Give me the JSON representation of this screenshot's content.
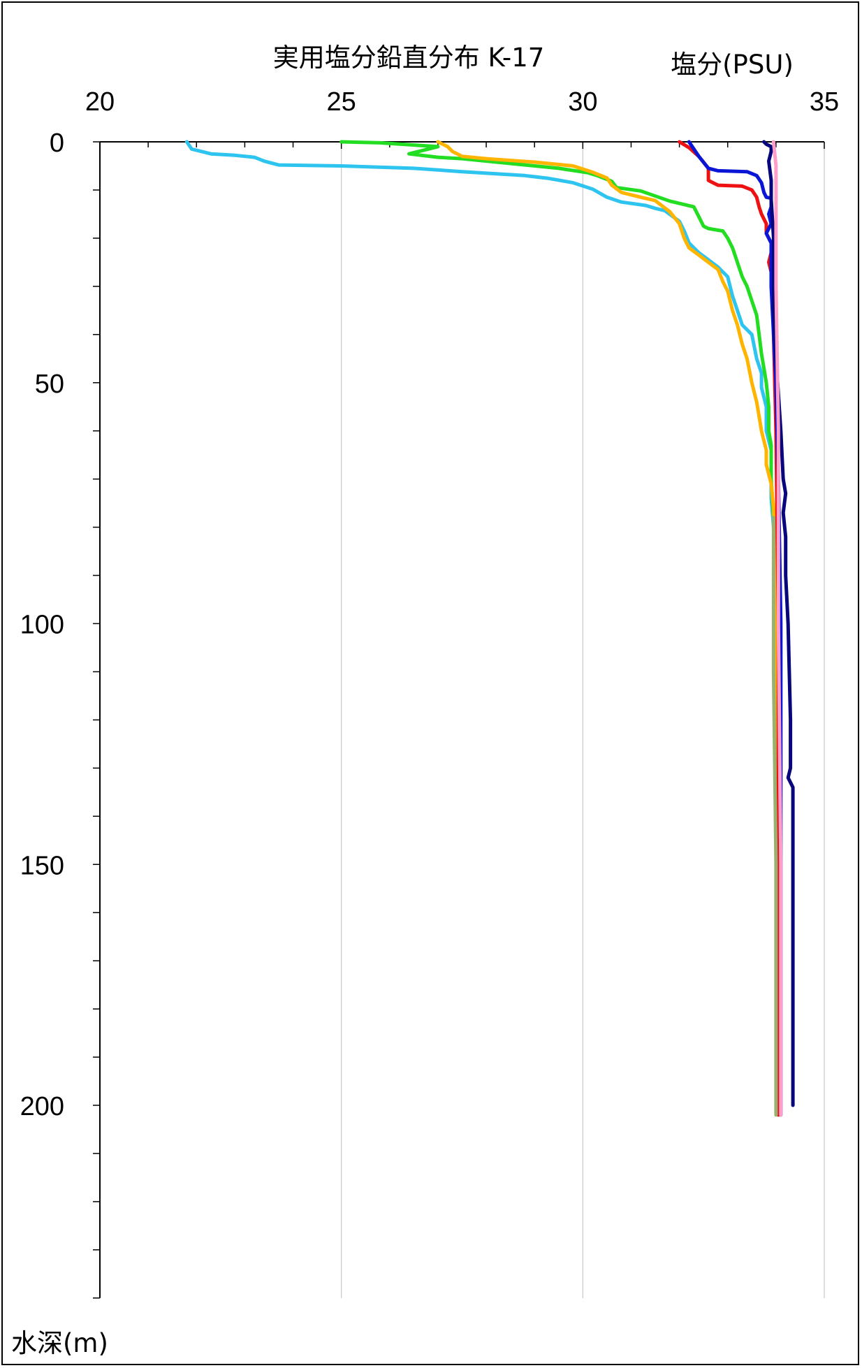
{
  "chart_data": {
    "type": "line",
    "title": "実用塩分鉛直分布 K-17",
    "xlabel": "塩分(PSU)",
    "ylabel": "水深(m)",
    "xlim": [
      20,
      35
    ],
    "ylim": [
      0,
      240
    ],
    "y_inverted": true,
    "x_axis_position": "top",
    "xticks": [
      "20",
      "25",
      "30",
      "35"
    ],
    "yticks": [
      "0",
      "50",
      "100",
      "150",
      "200"
    ],
    "grid": "vertical",
    "legend": "none",
    "series": [
      {
        "color": "#2ec4f0",
        "points": [
          [
            21.8,
            0
          ],
          [
            21.9,
            1.5
          ],
          [
            22.3,
            2.5
          ],
          [
            22.8,
            2.8
          ],
          [
            23.2,
            3.2
          ],
          [
            23.4,
            4
          ],
          [
            23.7,
            4.8
          ],
          [
            25.0,
            5
          ],
          [
            26.5,
            5.5
          ],
          [
            27.5,
            6.2
          ],
          [
            28.8,
            7
          ],
          [
            29.3,
            7.6
          ],
          [
            29.8,
            8.5
          ],
          [
            30.2,
            9.8
          ],
          [
            30.5,
            11.5
          ],
          [
            30.8,
            12.5
          ],
          [
            31.3,
            13.2
          ],
          [
            31.5,
            13.8
          ],
          [
            31.7,
            14.3
          ],
          [
            32.0,
            16.5
          ],
          [
            32.1,
            18.5
          ],
          [
            32.2,
            21
          ],
          [
            32.4,
            23
          ],
          [
            32.6,
            24.5
          ],
          [
            32.8,
            26
          ],
          [
            33.0,
            28
          ],
          [
            33.1,
            32
          ],
          [
            33.2,
            35
          ],
          [
            33.3,
            38
          ],
          [
            33.5,
            40
          ],
          [
            33.6,
            45
          ],
          [
            33.7,
            48
          ],
          [
            33.7,
            51
          ],
          [
            33.8,
            55
          ],
          [
            33.8,
            60
          ],
          [
            33.9,
            64
          ],
          [
            33.9,
            70
          ],
          [
            33.9,
            74
          ],
          [
            33.95,
            80
          ],
          [
            34.0,
            100
          ],
          [
            34.05,
            150
          ],
          [
            34.05,
            202
          ]
        ]
      },
      {
        "color": "#22dd22",
        "points": [
          [
            25.0,
            0
          ],
          [
            25.8,
            0.2
          ],
          [
            26.4,
            0.6
          ],
          [
            27.0,
            1.0
          ],
          [
            26.4,
            2.5
          ],
          [
            27.0,
            3.2
          ],
          [
            27.5,
            3.5
          ],
          [
            28.5,
            4.5
          ],
          [
            29.5,
            5.5
          ],
          [
            30.1,
            6.4
          ],
          [
            30.3,
            7.0
          ],
          [
            30.6,
            8.2
          ],
          [
            30.7,
            9.5
          ],
          [
            31.2,
            10.2
          ],
          [
            31.8,
            12.3
          ],
          [
            32.3,
            13.5
          ],
          [
            32.4,
            15.5
          ],
          [
            32.5,
            17.5
          ],
          [
            32.6,
            18
          ],
          [
            32.9,
            18.5
          ],
          [
            33.0,
            20
          ],
          [
            33.1,
            22
          ],
          [
            33.2,
            25
          ],
          [
            33.3,
            28
          ],
          [
            33.4,
            30
          ],
          [
            33.5,
            33
          ],
          [
            33.6,
            36
          ],
          [
            33.65,
            40
          ],
          [
            33.7,
            44
          ],
          [
            33.75,
            47
          ],
          [
            33.8,
            50
          ],
          [
            33.85,
            55
          ],
          [
            33.85,
            60
          ],
          [
            33.9,
            63
          ],
          [
            33.9,
            70
          ],
          [
            33.95,
            78
          ],
          [
            34.0,
            100
          ],
          [
            34.05,
            150
          ],
          [
            34.05,
            202
          ]
        ]
      },
      {
        "color": "#ffb400",
        "points": [
          [
            27.0,
            0
          ],
          [
            27.2,
            1.0
          ],
          [
            27.3,
            2.0
          ],
          [
            27.5,
            3.0
          ],
          [
            28.0,
            3.5
          ],
          [
            29.0,
            4.2
          ],
          [
            29.8,
            5.0
          ],
          [
            30.2,
            6.3
          ],
          [
            30.5,
            7.5
          ],
          [
            30.6,
            9.0
          ],
          [
            30.8,
            10.5
          ],
          [
            31.2,
            11.5
          ],
          [
            31.5,
            12.2
          ],
          [
            31.8,
            14.5
          ],
          [
            32.0,
            17
          ],
          [
            32.1,
            20
          ],
          [
            32.2,
            22
          ],
          [
            32.4,
            23.5
          ],
          [
            32.6,
            25
          ],
          [
            32.8,
            26.5
          ],
          [
            32.9,
            29
          ],
          [
            33.0,
            31
          ],
          [
            33.1,
            35
          ],
          [
            33.2,
            38
          ],
          [
            33.3,
            42
          ],
          [
            33.4,
            45
          ],
          [
            33.5,
            50
          ],
          [
            33.6,
            54
          ],
          [
            33.65,
            57
          ],
          [
            33.7,
            60
          ],
          [
            33.8,
            64
          ],
          [
            33.8,
            67
          ],
          [
            33.9,
            71
          ],
          [
            33.95,
            76
          ],
          [
            34.0,
            100
          ],
          [
            34.05,
            150
          ],
          [
            34.05,
            202
          ]
        ]
      },
      {
        "color": "#ee1111",
        "points": [
          [
            32.0,
            0
          ],
          [
            32.2,
            1.2
          ],
          [
            32.4,
            3.0
          ],
          [
            32.6,
            5.5
          ],
          [
            32.6,
            8.0
          ],
          [
            32.8,
            9.0
          ],
          [
            33.3,
            9.2
          ],
          [
            33.5,
            10.0
          ],
          [
            33.6,
            11.5
          ],
          [
            33.65,
            13.5
          ],
          [
            33.7,
            15
          ],
          [
            33.8,
            17
          ],
          [
            33.8,
            19
          ],
          [
            33.9,
            21
          ],
          [
            33.9,
            23
          ],
          [
            33.85,
            25
          ],
          [
            33.9,
            27
          ],
          [
            33.9,
            30
          ],
          [
            33.95,
            35
          ],
          [
            33.95,
            40
          ],
          [
            34.0,
            60
          ],
          [
            34.05,
            100
          ],
          [
            34.05,
            150
          ],
          [
            34.05,
            202
          ]
        ]
      },
      {
        "color": "#0a16d6",
        "points": [
          [
            32.2,
            0
          ],
          [
            32.3,
            1.5
          ],
          [
            32.4,
            3.0
          ],
          [
            32.6,
            5.5
          ],
          [
            32.8,
            6.0
          ],
          [
            33.4,
            6.2
          ],
          [
            33.6,
            7.0
          ],
          [
            33.7,
            8.5
          ],
          [
            33.75,
            10.5
          ],
          [
            33.8,
            11.5
          ],
          [
            33.9,
            11.7
          ],
          [
            33.9,
            13.5
          ],
          [
            33.85,
            15
          ],
          [
            33.9,
            17
          ],
          [
            33.8,
            19
          ],
          [
            33.9,
            21
          ],
          [
            33.9,
            30
          ],
          [
            33.95,
            40
          ],
          [
            34.0,
            50
          ],
          [
            34.05,
            70
          ],
          [
            34.1,
            100
          ],
          [
            34.1,
            150
          ],
          [
            34.1,
            202
          ]
        ]
      },
      {
        "color": "#07067a",
        "points": [
          [
            33.75,
            0
          ],
          [
            33.8,
            0.5
          ],
          [
            33.9,
            1.0
          ],
          [
            33.9,
            2.0
          ],
          [
            33.85,
            4
          ],
          [
            33.9,
            8
          ],
          [
            33.9,
            12
          ],
          [
            33.95,
            20
          ],
          [
            33.95,
            35
          ],
          [
            34.0,
            45
          ],
          [
            34.1,
            60
          ],
          [
            34.15,
            70
          ],
          [
            34.2,
            73
          ],
          [
            34.15,
            77
          ],
          [
            34.2,
            82
          ],
          [
            34.2,
            90
          ],
          [
            34.25,
            100
          ],
          [
            34.3,
            120
          ],
          [
            34.3,
            130
          ],
          [
            34.25,
            132
          ],
          [
            34.35,
            134
          ],
          [
            34.35,
            150
          ],
          [
            34.35,
            200
          ]
        ]
      },
      {
        "color": "#ff9ec8",
        "points": [
          [
            33.95,
            0
          ],
          [
            34.0,
            5
          ],
          [
            34.0,
            30
          ],
          [
            34.05,
            60
          ],
          [
            34.05,
            100
          ],
          [
            34.1,
            150
          ],
          [
            34.1,
            202
          ]
        ]
      },
      {
        "color": "#9ab070",
        "points": [
          [
            33.95,
            78
          ],
          [
            33.95,
            110
          ],
          [
            34.0,
            150
          ],
          [
            34.0,
            202
          ]
        ]
      }
    ]
  }
}
